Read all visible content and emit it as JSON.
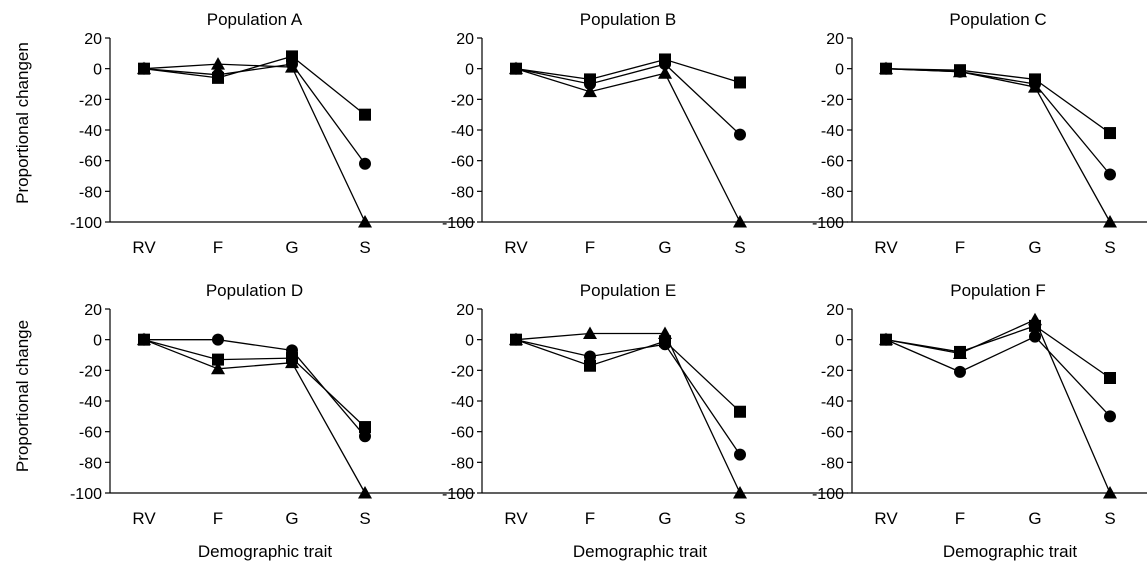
{
  "colors": {
    "ink": "#000000",
    "background": "#ffffff"
  },
  "labels": {
    "ylabel_top": "Proportional changen",
    "ylabel_bottom": "Proportional change",
    "xlabel": "Demographic trait"
  },
  "chart_data": [
    {
      "type": "line",
      "title": "Population A",
      "categories": [
        "RV",
        "F",
        "G",
        "S"
      ],
      "ylim": [
        -100,
        20
      ],
      "yticks": [
        20,
        0,
        -20,
        -40,
        -60,
        -80,
        -100
      ],
      "series": [
        {
          "marker": "square",
          "values": [
            0,
            -6,
            8,
            -30
          ]
        },
        {
          "marker": "circle",
          "values": [
            0,
            -4,
            3,
            -62
          ]
        },
        {
          "marker": "triangle",
          "values": [
            0,
            3,
            1,
            -100
          ]
        }
      ]
    },
    {
      "type": "line",
      "title": "Population B",
      "categories": [
        "RV",
        "F",
        "G",
        "S"
      ],
      "ylim": [
        -100,
        20
      ],
      "yticks": [
        20,
        0,
        -20,
        -40,
        -60,
        -80,
        -100
      ],
      "series": [
        {
          "marker": "square",
          "values": [
            0,
            -7,
            6,
            -9
          ]
        },
        {
          "marker": "circle",
          "values": [
            0,
            -10,
            3,
            -43
          ]
        },
        {
          "marker": "triangle",
          "values": [
            0,
            -15,
            -3,
            -100
          ]
        }
      ]
    },
    {
      "type": "line",
      "title": "Population C",
      "categories": [
        "RV",
        "F",
        "G",
        "S"
      ],
      "ylim": [
        -100,
        20
      ],
      "yticks": [
        20,
        0,
        -20,
        -40,
        -60,
        -80,
        -100
      ],
      "series": [
        {
          "marker": "square",
          "values": [
            0,
            -1,
            -7,
            -42
          ]
        },
        {
          "marker": "circle",
          "values": [
            0,
            -2,
            -10,
            -69
          ]
        },
        {
          "marker": "triangle",
          "values": [
            0,
            -2,
            -12,
            -100
          ]
        }
      ]
    },
    {
      "type": "line",
      "title": "Population D",
      "categories": [
        "RV",
        "F",
        "G",
        "S"
      ],
      "ylim": [
        -100,
        20
      ],
      "yticks": [
        20,
        0,
        -20,
        -40,
        -60,
        -80,
        -100
      ],
      "series": [
        {
          "marker": "square",
          "values": [
            0,
            -13,
            -12,
            -57
          ]
        },
        {
          "marker": "circle",
          "values": [
            0,
            0,
            -7,
            -63
          ]
        },
        {
          "marker": "triangle",
          "values": [
            0,
            -19,
            -15,
            -100
          ]
        }
      ]
    },
    {
      "type": "line",
      "title": "Population E",
      "categories": [
        "RV",
        "F",
        "G",
        "S"
      ],
      "ylim": [
        -100,
        20
      ],
      "yticks": [
        20,
        0,
        -20,
        -40,
        -60,
        -80,
        -100
      ],
      "series": [
        {
          "marker": "square",
          "values": [
            0,
            -17,
            -1,
            -47
          ]
        },
        {
          "marker": "circle",
          "values": [
            0,
            -11,
            -3,
            -75
          ]
        },
        {
          "marker": "triangle",
          "values": [
            0,
            4,
            4,
            -100
          ]
        }
      ]
    },
    {
      "type": "line",
      "title": "Population F",
      "categories": [
        "RV",
        "F",
        "G",
        "S"
      ],
      "ylim": [
        -100,
        20
      ],
      "yticks": [
        20,
        0,
        -20,
        -40,
        -60,
        -80,
        -100
      ],
      "series": [
        {
          "marker": "square",
          "values": [
            0,
            -8,
            9,
            -25
          ]
        },
        {
          "marker": "circle",
          "values": [
            0,
            -21,
            2,
            -50
          ]
        },
        {
          "marker": "triangle",
          "values": [
            0,
            -9,
            13,
            -100
          ]
        }
      ]
    }
  ]
}
